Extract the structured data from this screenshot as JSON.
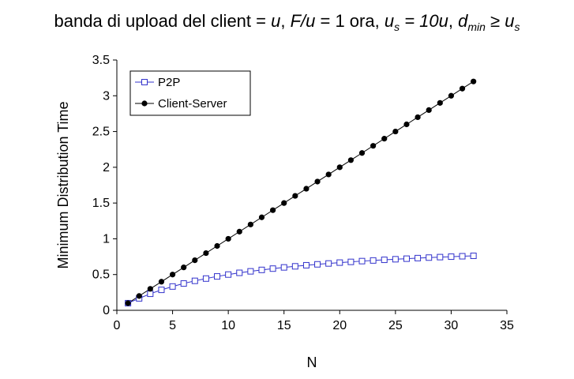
{
  "title": {
    "prefix": "banda di upload del client = ",
    "u1": "u",
    "sep1": ",  ",
    "ratio": "F/u",
    "eq1": " = 1 ora,  ",
    "us_base": "u",
    "us_sub": "s",
    "us_rest": " = 10u",
    "sep2": ",  ",
    "dmin_base": "d",
    "dmin_sub": "min",
    "ge": " ≥ ",
    "us2_base": "u",
    "us2_sub": "s"
  },
  "chart_data": {
    "type": "line",
    "xlabel": "N",
    "ylabel": "Minimum Distribution Time",
    "xlim": [
      0,
      35
    ],
    "ylim": [
      0,
      3.5
    ],
    "xticks": [
      "0",
      "5",
      "10",
      "15",
      "20",
      "25",
      "30",
      "35"
    ],
    "yticks": [
      "0",
      "0.5",
      "1",
      "1.5",
      "2",
      "2.5",
      "3",
      "3.5"
    ],
    "grid": false,
    "legend_position": "top-left",
    "x": [
      1,
      2,
      3,
      4,
      5,
      6,
      7,
      8,
      9,
      10,
      11,
      12,
      13,
      14,
      15,
      16,
      17,
      18,
      19,
      20,
      21,
      22,
      23,
      24,
      25,
      26,
      27,
      28,
      29,
      30,
      31,
      32
    ],
    "series": [
      {
        "name": "P2P",
        "color": "#3333cc",
        "marker": "open-square",
        "values": [
          0.1,
          0.167,
          0.231,
          0.286,
          0.333,
          0.375,
          0.412,
          0.444,
          0.474,
          0.5,
          0.524,
          0.545,
          0.565,
          0.583,
          0.6,
          0.615,
          0.63,
          0.643,
          0.655,
          0.667,
          0.677,
          0.688,
          0.697,
          0.706,
          0.714,
          0.722,
          0.73,
          0.737,
          0.744,
          0.75,
          0.756,
          0.762
        ]
      },
      {
        "name": "Client-Server",
        "color": "#000000",
        "marker": "filled-circle",
        "values": [
          0.1,
          0.2,
          0.3,
          0.4,
          0.5,
          0.6,
          0.7,
          0.8,
          0.9,
          1.0,
          1.1,
          1.2,
          1.3,
          1.4,
          1.5,
          1.6,
          1.7,
          1.8,
          1.9,
          2.0,
          2.1,
          2.2,
          2.3,
          2.4,
          2.5,
          2.6,
          2.7,
          2.8,
          2.9,
          3.0,
          3.1,
          3.2
        ]
      }
    ]
  }
}
